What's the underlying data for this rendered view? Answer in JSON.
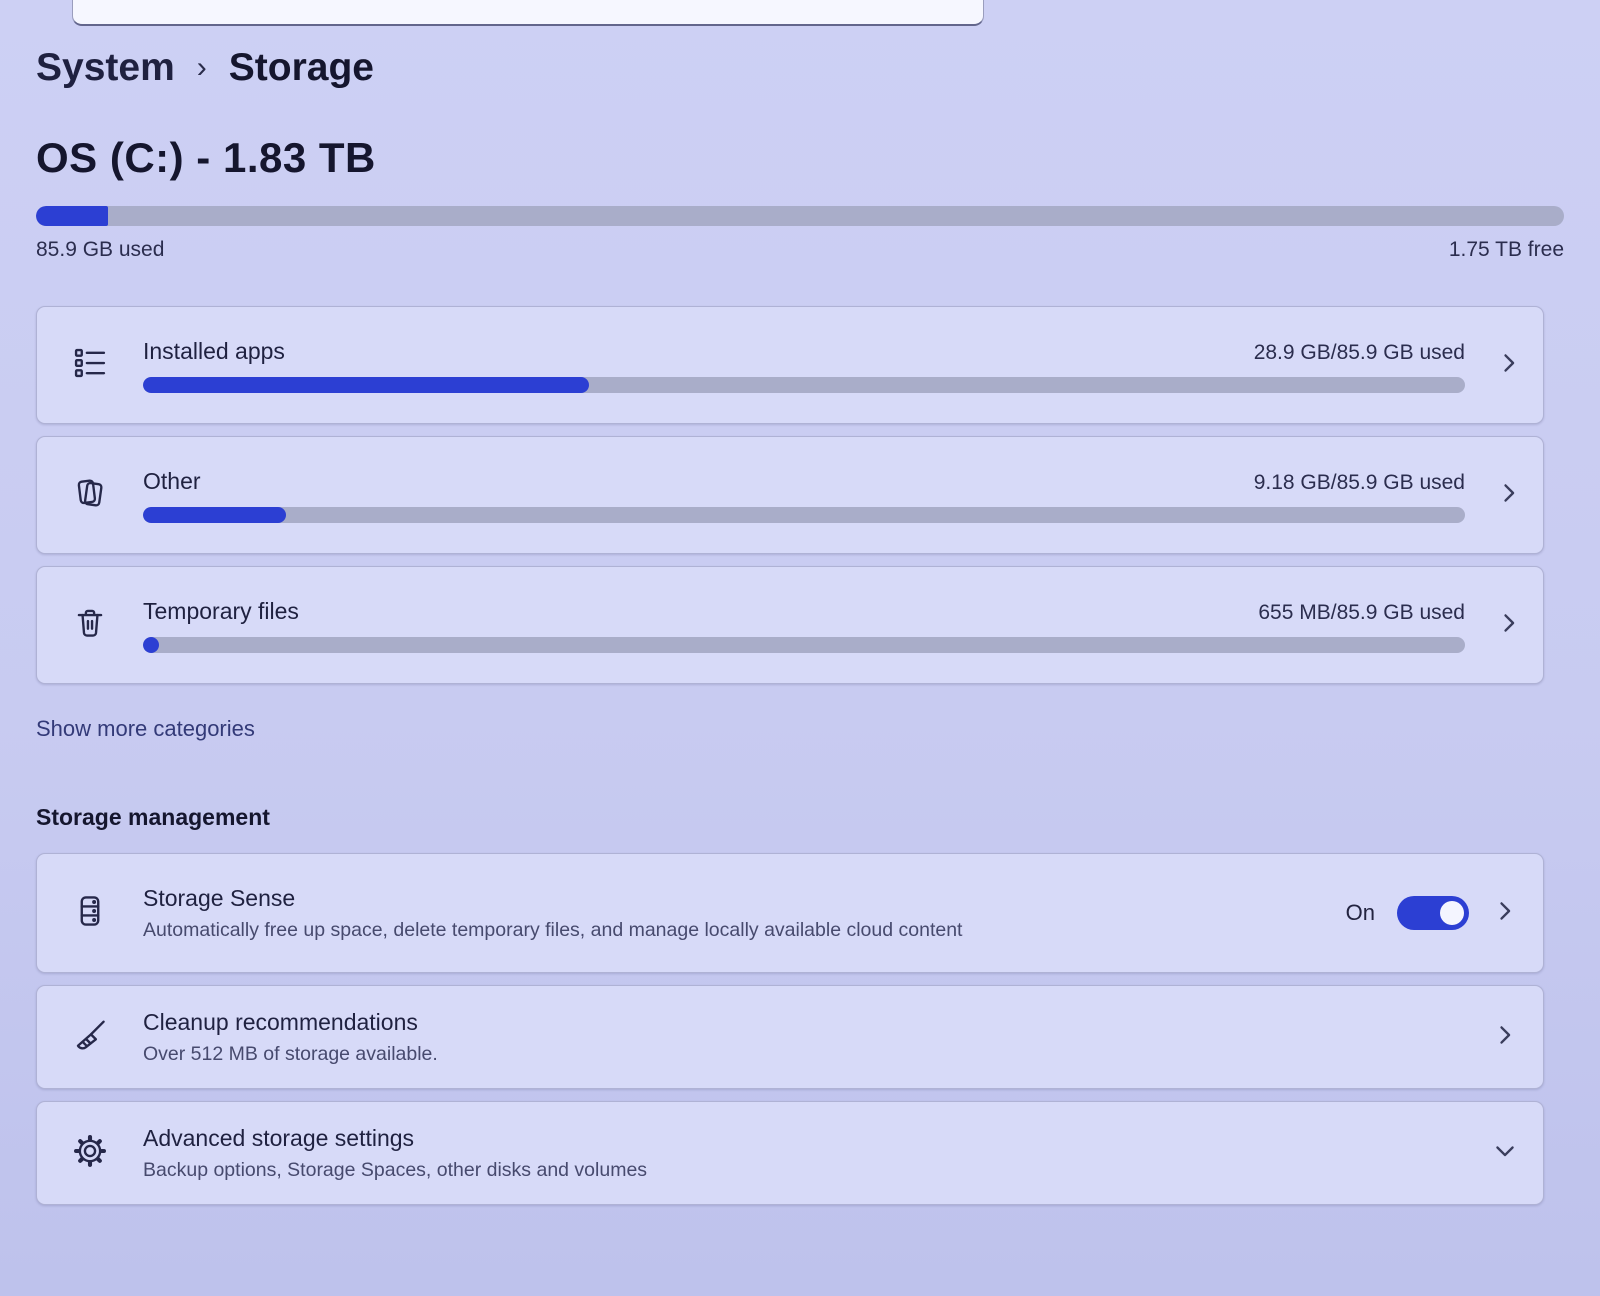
{
  "header": {
    "breadcrumb": {
      "parent": "System",
      "separator": "›",
      "current": "Storage"
    }
  },
  "drive": {
    "title": "OS (C:) - 1.83 TB",
    "used_label": "85.9 GB used",
    "free_label": "1.75 TB free",
    "used_percent": 4.7
  },
  "categories": {
    "items": [
      {
        "label": "Installed apps",
        "usage": "28.9 GB/85.9 GB used",
        "percent": 33.7,
        "icon": "apps-list-icon"
      },
      {
        "label": "Other",
        "usage": "9.18 GB/85.9 GB used",
        "percent": 10.8,
        "icon": "documents-icon"
      },
      {
        "label": "Temporary files",
        "usage": "655 MB/85.9 GB used",
        "percent": 0.8,
        "icon": "trash-icon"
      }
    ],
    "show_more_label": "Show more categories"
  },
  "management": {
    "heading": "Storage management",
    "storage_sense": {
      "title": "Storage Sense",
      "subtitle": "Automatically free up space, delete temporary files, and manage locally available cloud content",
      "toggle_state": "On"
    },
    "cleanup": {
      "title": "Cleanup recommendations",
      "subtitle": "Over 512 MB of storage available."
    },
    "advanced": {
      "title": "Advanced storage settings",
      "subtitle": "Backup options, Storage Spaces, other disks and volumes"
    }
  },
  "colors": {
    "accent": "#2c3fd3",
    "track": "#a9adc9",
    "background": "#c9ccf0",
    "card": "#d7daf8"
  }
}
